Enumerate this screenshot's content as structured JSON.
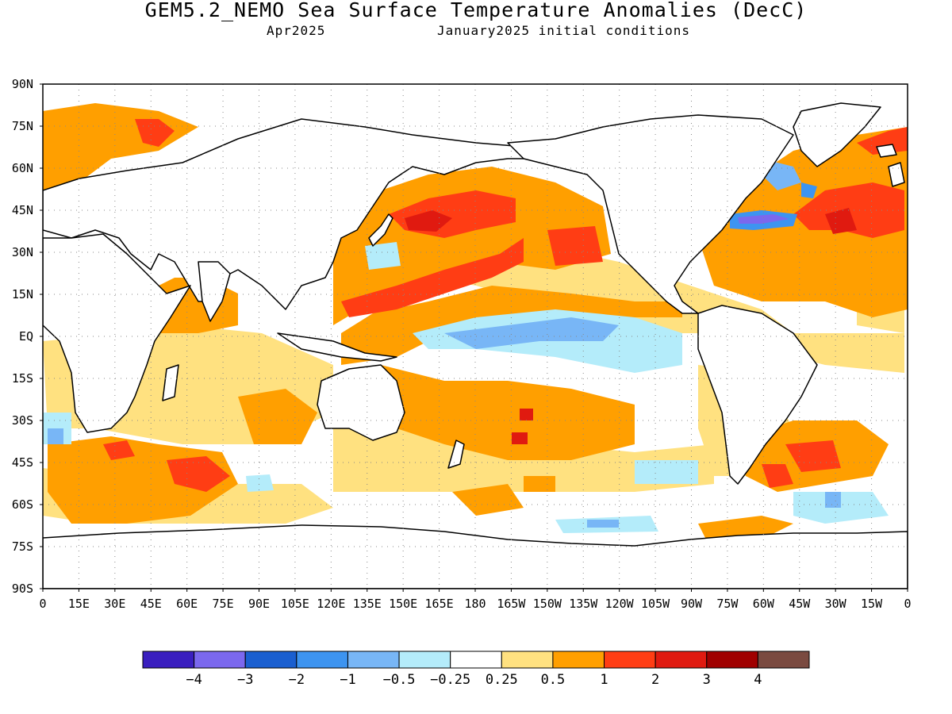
{
  "title": "GEM5.2_NEMO Sea Surface Temperature Anomalies (DecC)",
  "subtitle_left": "Apr2025",
  "subtitle_right": "January2025 initial conditions",
  "y_axis_labels": [
    "90N",
    "75N",
    "60N",
    "45N",
    "30N",
    "15N",
    "EQ",
    "15S",
    "30S",
    "45S",
    "60S",
    "75S",
    "90S"
  ],
  "x_axis_labels": [
    "0",
    "15E",
    "30E",
    "45E",
    "60E",
    "75E",
    "90E",
    "105E",
    "120E",
    "135E",
    "150E",
    "165E",
    "180",
    "165W",
    "150W",
    "135W",
    "120W",
    "105W",
    "90W",
    "75W",
    "60W",
    "45W",
    "30W",
    "15W",
    "0"
  ],
  "colorbar": {
    "colors": [
      "#3a1fbf",
      "#7b68ee",
      "#1a5fd0",
      "#3d94f0",
      "#78b6f6",
      "#b4ecfa",
      "#ffffff",
      "#ffe180",
      "#ff9f00",
      "#ff3d14",
      "#e01a10",
      "#a00000",
      "#7a4a40"
    ],
    "labels": [
      "−4",
      "−3",
      "−2",
      "−1",
      "−0.5",
      "−0.25",
      "0.25",
      "0.5",
      "1",
      "2",
      "3",
      "4"
    ]
  }
}
